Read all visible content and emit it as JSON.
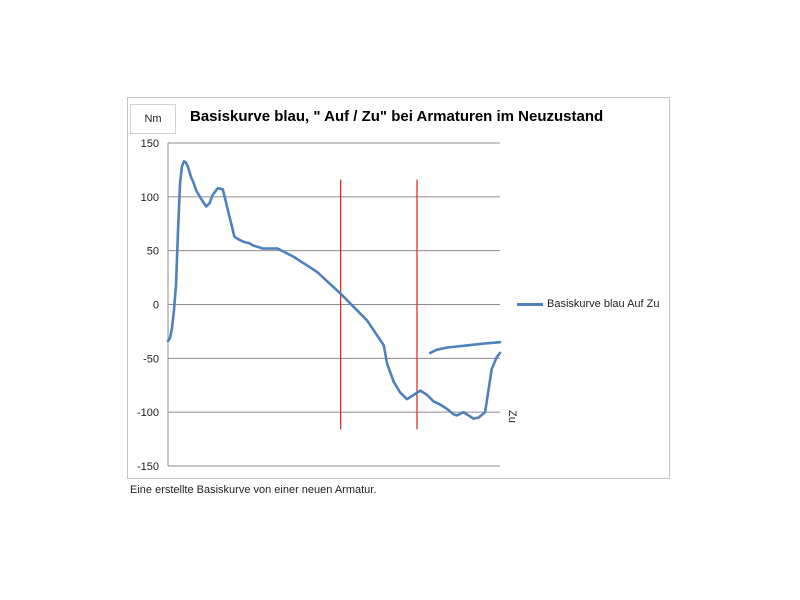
{
  "chart_data": {
    "type": "line",
    "title": "Basiskurve blau, \" Auf / Zu\"  bei Armaturen im Neuzustand",
    "unit_label": "Nm",
    "xlabel": "Zu",
    "ylabel": "",
    "ylim": [
      -150,
      150
    ],
    "yticks": [
      150,
      100,
      50,
      0,
      -50,
      -100,
      -150
    ],
    "xlim": [
      0,
      100
    ],
    "grid": true,
    "legend_position": "right",
    "series": [
      {
        "name": "Basiskurve blau  Auf  Zu",
        "color": "#4f81bd",
        "x": [
          0,
          0.6,
          1.2,
          1.8,
          2.4,
          3,
          3.6,
          4.2,
          4.8,
          5.4,
          6,
          6.4,
          7,
          7.6,
          8.5,
          10,
          11.5,
          12.5,
          13.5,
          15,
          16.5,
          18,
          20,
          21.5,
          23,
          24.5,
          25.5,
          26.5,
          27.5,
          28.5,
          29,
          30,
          33,
          38,
          45,
          52,
          60,
          65,
          66,
          68,
          70,
          72,
          74,
          76,
          78,
          80,
          82,
          84,
          86,
          87,
          89,
          90.5,
          92,
          93.5,
          95.5,
          97.5,
          99,
          100
        ],
        "y": [
          -34,
          -31,
          -22,
          -5,
          18,
          68,
          112,
          128,
          133,
          132,
          128,
          124,
          118,
          114,
          106,
          98,
          91,
          94,
          102,
          108,
          107,
          88,
          63,
          60,
          58,
          57,
          55,
          54,
          53,
          52,
          52,
          52,
          52,
          44,
          30,
          10,
          -15,
          -38,
          -55,
          -72,
          -82,
          -88,
          -84,
          -80,
          -84,
          -90,
          -93,
          -97,
          -102,
          -103,
          -100,
          -103,
          -106,
          -105,
          -100,
          -60,
          -49,
          -45
        ],
        "x2": [
          79,
          81,
          84,
          87,
          90,
          93,
          96,
          100
        ],
        "y2": [
          -45,
          -42,
          -40,
          -39,
          -38,
          -37,
          -36,
          -35
        ]
      }
    ],
    "vertical_markers": [
      {
        "x": 52,
        "color": "#e03030"
      },
      {
        "x": 75,
        "color": "#e03030"
      }
    ]
  },
  "caption": "Eine erstellte Basiskurve von einer neuen Armatur."
}
